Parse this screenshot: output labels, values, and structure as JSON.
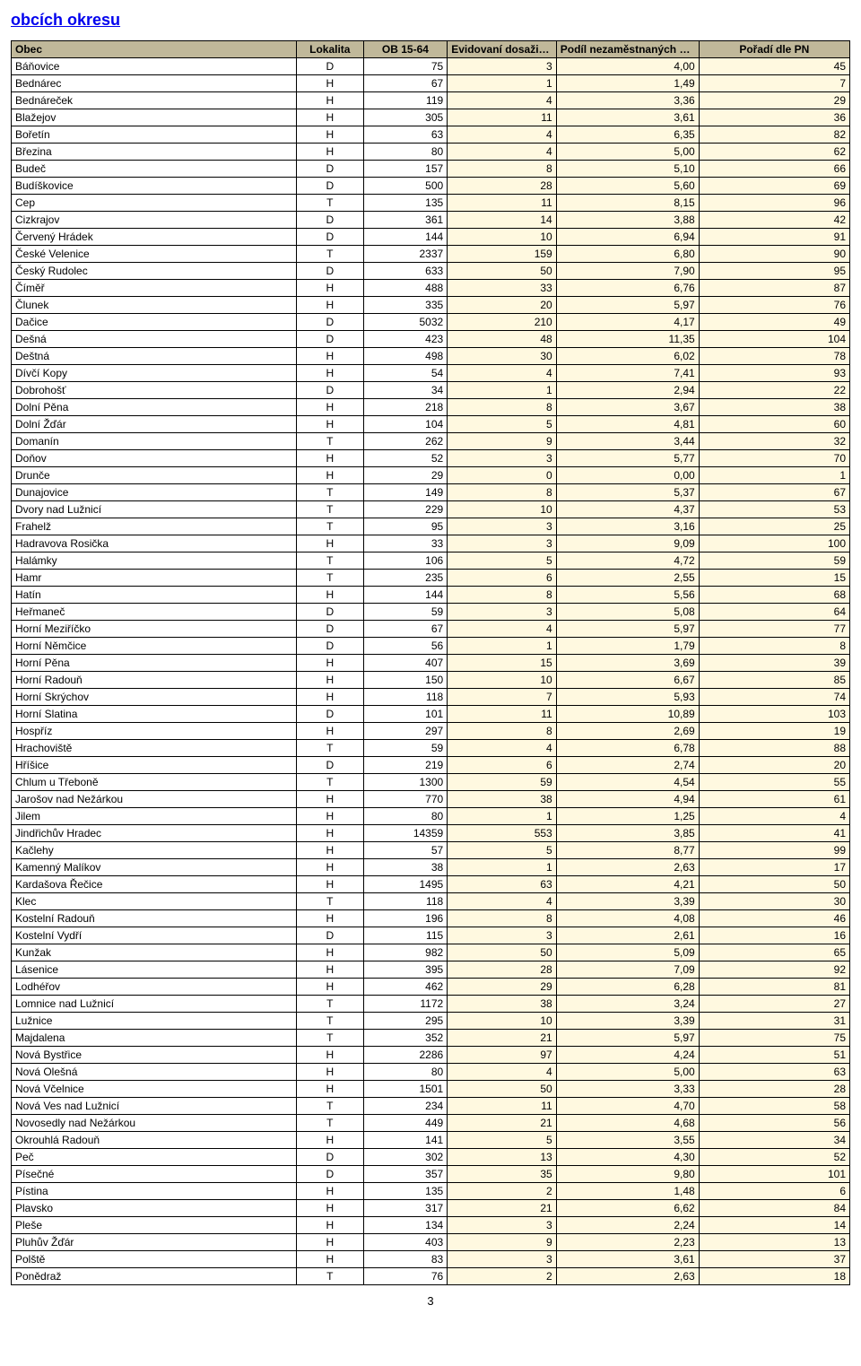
{
  "title": "obcích okresu",
  "page_number": "3",
  "table": {
    "columns": [
      {
        "key": "obec",
        "label": "Obec",
        "class": "col-obec"
      },
      {
        "key": "lok",
        "label": "Lokalita",
        "class": "col-lok"
      },
      {
        "key": "ob1564",
        "label": "OB 15-64",
        "class": "col-ob1564"
      },
      {
        "key": "evid",
        "label": "Evidovaní dosažitelní",
        "class": "col-evid"
      },
      {
        "key": "podil",
        "label": "Podíl nezaměstnaných v %",
        "class": "col-podil"
      },
      {
        "key": "poradi",
        "label": "Pořadí dle PN",
        "class": "col-poradi"
      }
    ],
    "rows": [
      [
        "Báňovice",
        "D",
        "75",
        "3",
        "4,00",
        "45"
      ],
      [
        "Bednárec",
        "H",
        "67",
        "1",
        "1,49",
        "7"
      ],
      [
        "Bednáreček",
        "H",
        "119",
        "4",
        "3,36",
        "29"
      ],
      [
        "Blažejov",
        "H",
        "305",
        "11",
        "3,61",
        "36"
      ],
      [
        "Bořetín",
        "H",
        "63",
        "4",
        "6,35",
        "82"
      ],
      [
        "Březina",
        "H",
        "80",
        "4",
        "5,00",
        "62"
      ],
      [
        "Budeč",
        "D",
        "157",
        "8",
        "5,10",
        "66"
      ],
      [
        "Budíškovice",
        "D",
        "500",
        "28",
        "5,60",
        "69"
      ],
      [
        "Cep",
        "T",
        "135",
        "11",
        "8,15",
        "96"
      ],
      [
        "Cizkrajov",
        "D",
        "361",
        "14",
        "3,88",
        "42"
      ],
      [
        "Červený Hrádek",
        "D",
        "144",
        "10",
        "6,94",
        "91"
      ],
      [
        "České Velenice",
        "T",
        "2337",
        "159",
        "6,80",
        "90"
      ],
      [
        "Český Rudolec",
        "D",
        "633",
        "50",
        "7,90",
        "95"
      ],
      [
        "Číměř",
        "H",
        "488",
        "33",
        "6,76",
        "87"
      ],
      [
        "Člunek",
        "H",
        "335",
        "20",
        "5,97",
        "76"
      ],
      [
        "Dačice",
        "D",
        "5032",
        "210",
        "4,17",
        "49"
      ],
      [
        "Dešná",
        "D",
        "423",
        "48",
        "11,35",
        "104"
      ],
      [
        "Deštná",
        "H",
        "498",
        "30",
        "6,02",
        "78"
      ],
      [
        "Dívčí Kopy",
        "H",
        "54",
        "4",
        "7,41",
        "93"
      ],
      [
        "Dobrohošť",
        "D",
        "34",
        "1",
        "2,94",
        "22"
      ],
      [
        "Dolní Pěna",
        "H",
        "218",
        "8",
        "3,67",
        "38"
      ],
      [
        "Dolní Žďár",
        "H",
        "104",
        "5",
        "4,81",
        "60"
      ],
      [
        "Domanín",
        "T",
        "262",
        "9",
        "3,44",
        "32"
      ],
      [
        "Doňov",
        "H",
        "52",
        "3",
        "5,77",
        "70"
      ],
      [
        "Drunče",
        "H",
        "29",
        "0",
        "0,00",
        "1"
      ],
      [
        "Dunajovice",
        "T",
        "149",
        "8",
        "5,37",
        "67"
      ],
      [
        "Dvory nad Lužnicí",
        "T",
        "229",
        "10",
        "4,37",
        "53"
      ],
      [
        "Frahelž",
        "T",
        "95",
        "3",
        "3,16",
        "25"
      ],
      [
        "Hadravova Rosička",
        "H",
        "33",
        "3",
        "9,09",
        "100"
      ],
      [
        "Halámky",
        "T",
        "106",
        "5",
        "4,72",
        "59"
      ],
      [
        "Hamr",
        "T",
        "235",
        "6",
        "2,55",
        "15"
      ],
      [
        "Hatín",
        "H",
        "144",
        "8",
        "5,56",
        "68"
      ],
      [
        "Heřmaneč",
        "D",
        "59",
        "3",
        "5,08",
        "64"
      ],
      [
        "Horní Meziříčko",
        "D",
        "67",
        "4",
        "5,97",
        "77"
      ],
      [
        "Horní Němčice",
        "D",
        "56",
        "1",
        "1,79",
        "8"
      ],
      [
        "Horní Pěna",
        "H",
        "407",
        "15",
        "3,69",
        "39"
      ],
      [
        "Horní Radouň",
        "H",
        "150",
        "10",
        "6,67",
        "85"
      ],
      [
        "Horní Skrýchov",
        "H",
        "118",
        "7",
        "5,93",
        "74"
      ],
      [
        "Horní Slatina",
        "D",
        "101",
        "11",
        "10,89",
        "103"
      ],
      [
        "Hospříz",
        "H",
        "297",
        "8",
        "2,69",
        "19"
      ],
      [
        "Hrachoviště",
        "T",
        "59",
        "4",
        "6,78",
        "88"
      ],
      [
        "Hříšice",
        "D",
        "219",
        "6",
        "2,74",
        "20"
      ],
      [
        "Chlum u Třeboně",
        "T",
        "1300",
        "59",
        "4,54",
        "55"
      ],
      [
        "Jarošov nad Nežárkou",
        "H",
        "770",
        "38",
        "4,94",
        "61"
      ],
      [
        "Jilem",
        "H",
        "80",
        "1",
        "1,25",
        "4"
      ],
      [
        "Jindřichův Hradec",
        "H",
        "14359",
        "553",
        "3,85",
        "41"
      ],
      [
        "Kačlehy",
        "H",
        "57",
        "5",
        "8,77",
        "99"
      ],
      [
        "Kamenný Malíkov",
        "H",
        "38",
        "1",
        "2,63",
        "17"
      ],
      [
        "Kardašova Řečice",
        "H",
        "1495",
        "63",
        "4,21",
        "50"
      ],
      [
        "Klec",
        "T",
        "118",
        "4",
        "3,39",
        "30"
      ],
      [
        "Kostelní Radouň",
        "H",
        "196",
        "8",
        "4,08",
        "46"
      ],
      [
        "Kostelní Vydří",
        "D",
        "115",
        "3",
        "2,61",
        "16"
      ],
      [
        "Kunžak",
        "H",
        "982",
        "50",
        "5,09",
        "65"
      ],
      [
        "Lásenice",
        "H",
        "395",
        "28",
        "7,09",
        "92"
      ],
      [
        "Lodhéřov",
        "H",
        "462",
        "29",
        "6,28",
        "81"
      ],
      [
        "Lomnice nad Lužnicí",
        "T",
        "1172",
        "38",
        "3,24",
        "27"
      ],
      [
        "Lužnice",
        "T",
        "295",
        "10",
        "3,39",
        "31"
      ],
      [
        "Majdalena",
        "T",
        "352",
        "21",
        "5,97",
        "75"
      ],
      [
        "Nová Bystřice",
        "H",
        "2286",
        "97",
        "4,24",
        "51"
      ],
      [
        "Nová Olešná",
        "H",
        "80",
        "4",
        "5,00",
        "63"
      ],
      [
        "Nová Včelnice",
        "H",
        "1501",
        "50",
        "3,33",
        "28"
      ],
      [
        "Nová Ves nad Lužnicí",
        "T",
        "234",
        "11",
        "4,70",
        "58"
      ],
      [
        "Novosedly nad Nežárkou",
        "T",
        "449",
        "21",
        "4,68",
        "56"
      ],
      [
        "Okrouhlá Radouň",
        "H",
        "141",
        "5",
        "3,55",
        "34"
      ],
      [
        "Peč",
        "D",
        "302",
        "13",
        "4,30",
        "52"
      ],
      [
        "Písečné",
        "D",
        "357",
        "35",
        "9,80",
        "101"
      ],
      [
        "Pístina",
        "H",
        "135",
        "2",
        "1,48",
        "6"
      ],
      [
        "Plavsko",
        "H",
        "317",
        "21",
        "6,62",
        "84"
      ],
      [
        "Pleše",
        "H",
        "134",
        "3",
        "2,24",
        "14"
      ],
      [
        "Pluhův Žďár",
        "H",
        "403",
        "9",
        "2,23",
        "13"
      ],
      [
        "Polště",
        "H",
        "83",
        "3",
        "3,61",
        "37"
      ],
      [
        "Ponědraž",
        "T",
        "76",
        "2",
        "2,63",
        "18"
      ]
    ]
  },
  "styling": {
    "header_bg": "#c0b89a",
    "highlight_bg": "#fff9e0",
    "title_color": "#0000ee",
    "border_color": "#000000",
    "title_fontsize": 18,
    "cell_fontsize": 12
  }
}
